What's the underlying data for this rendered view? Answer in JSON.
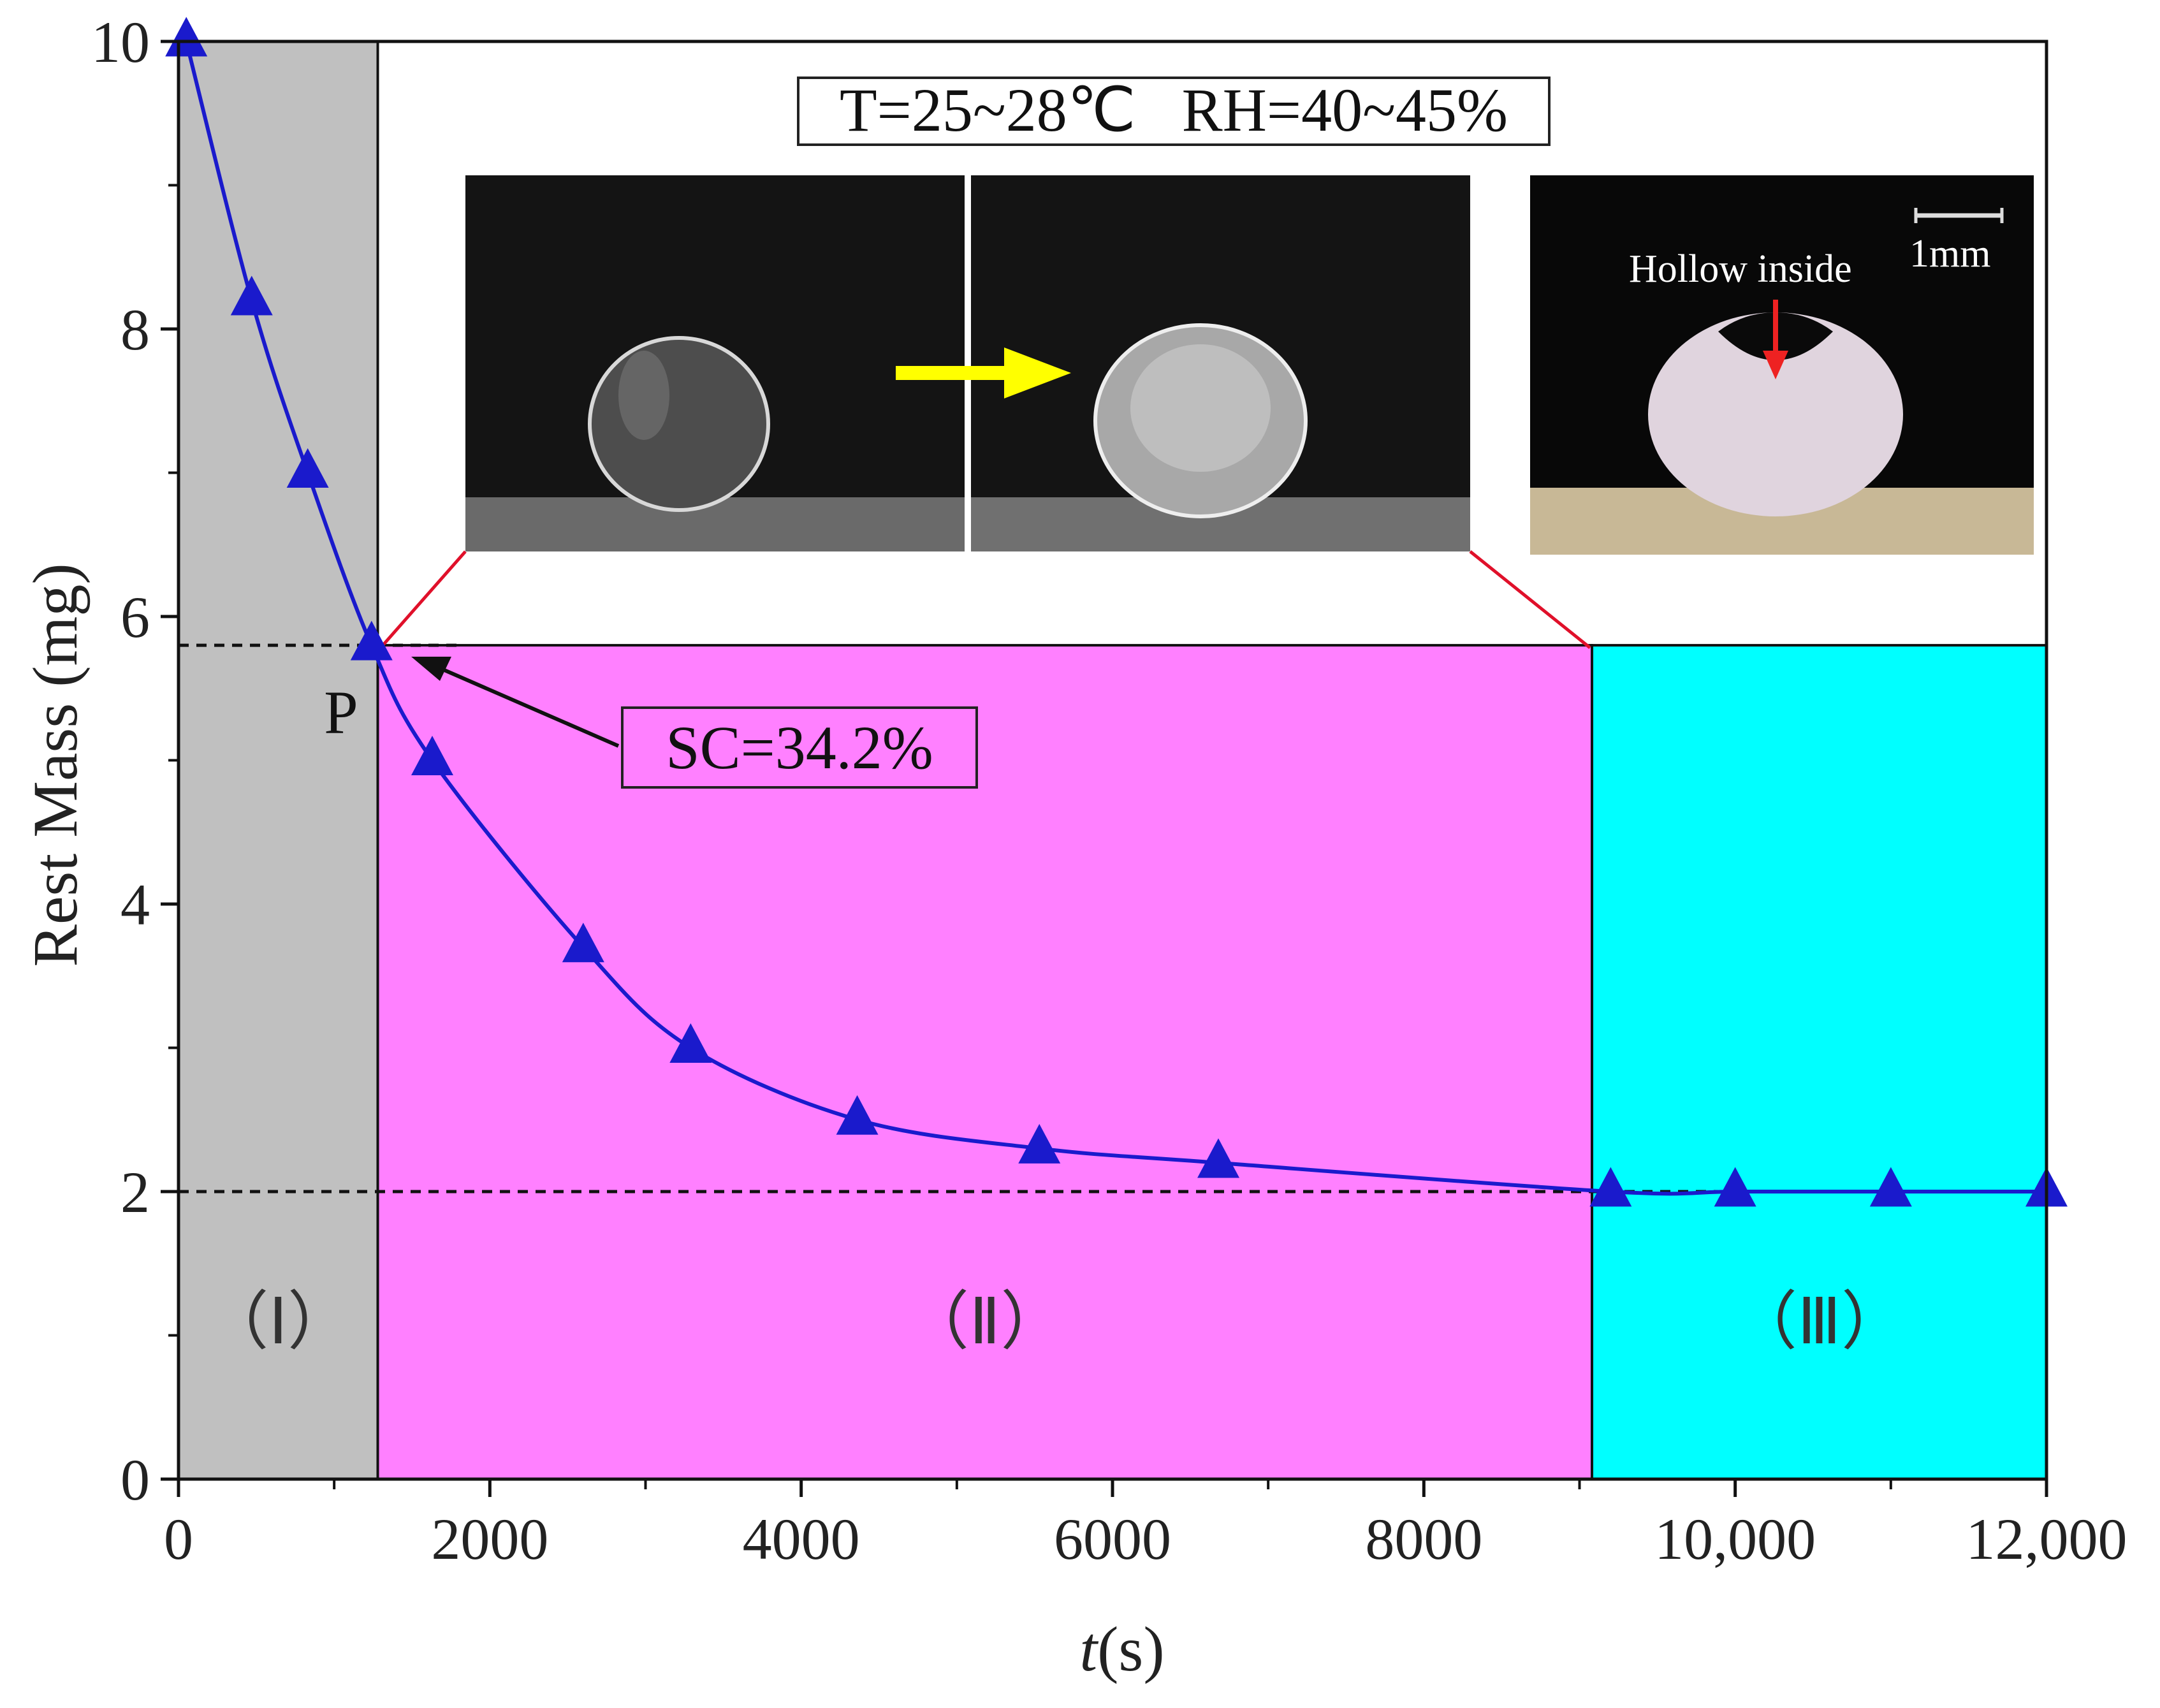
{
  "chart_data": {
    "type": "line",
    "xlabel_italic": "t",
    "xlabel_rest": "(s)",
    "ylabel": "Rest Mass (mg)",
    "xlim": [
      0,
      12000
    ],
    "ylim": [
      0,
      10
    ],
    "x_ticks": [
      {
        "value": 0,
        "label": "0"
      },
      {
        "value": 2000,
        "label": "2000"
      },
      {
        "value": 4000,
        "label": "4000"
      },
      {
        "value": 6000,
        "label": "6000"
      },
      {
        "value": 8000,
        "label": "8000"
      },
      {
        "value": 10000,
        "label": "10,000"
      },
      {
        "value": 12000,
        "label": "12,000"
      }
    ],
    "y_ticks": [
      {
        "value": 0,
        "label": "0"
      },
      {
        "value": 2,
        "label": "2"
      },
      {
        "value": 4,
        "label": "4"
      },
      {
        "value": 6,
        "label": "6"
      },
      {
        "value": 8,
        "label": "8"
      },
      {
        "value": 10,
        "label": "10"
      }
    ],
    "series": [
      {
        "color": "#1a1acc",
        "marker": "triangle",
        "x": [
          50,
          470,
          830,
          1240,
          1630,
          2600,
          3290,
          4360,
          5530,
          6680,
          9200,
          10000,
          11000,
          12000
        ],
        "y": [
          10.0,
          8.2,
          7.0,
          5.8,
          5.0,
          3.7,
          3.0,
          2.5,
          2.3,
          2.2,
          2.0,
          2.0,
          2.0,
          2.0
        ]
      }
    ],
    "regions": [
      {
        "label": "（Ⅰ）",
        "x_start": 0,
        "x_end": 1280,
        "y_top": 10,
        "color": "#c0c0c0"
      },
      {
        "label": "（Ⅱ）",
        "x_start": 1280,
        "x_end": 9080,
        "y_top": 5.8,
        "color": "#ff80ff"
      },
      {
        "label": "（Ⅲ）",
        "x_start": 9080,
        "x_end": 12000,
        "y_top": 5.8,
        "color": "#00ffff"
      }
    ],
    "reference_lines": [
      {
        "y": 5.8,
        "x_end": 1800
      },
      {
        "y": 2.0,
        "x_end": 12000
      }
    ],
    "point_label": "P",
    "annotation": "SC=34.2%",
    "conditions": "T=25~28℃   RH=40~45%",
    "inset_text": "Hollow inside",
    "scale_bar_label": "1mm"
  }
}
